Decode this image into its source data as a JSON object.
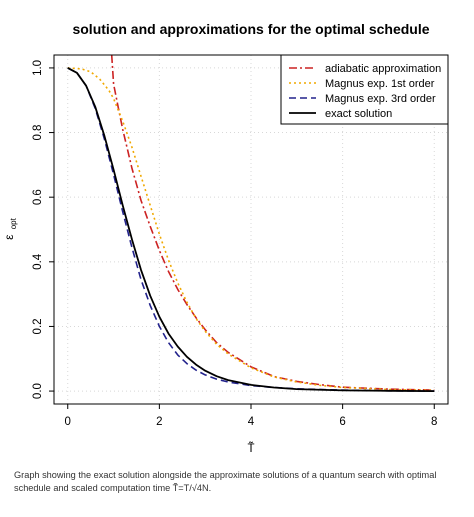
{
  "chart_data": {
    "type": "line",
    "title": "solution and approximations for the optimal schedule",
    "xlabel": "T̃",
    "ylabel": "ε",
    "ylabel_sub": "opt",
    "xlim": [
      -0.3,
      8.3
    ],
    "ylim": [
      -0.04,
      1.04
    ],
    "x_ticks": [
      "0",
      "2",
      "4",
      "6",
      "8"
    ],
    "y_ticks": [
      "0.0",
      "0.2",
      "0.4",
      "0.6",
      "0.8",
      "1.0"
    ],
    "grid": true,
    "legend_position": "top-right",
    "series": [
      {
        "name": "adiabatic approximation",
        "color": "#cc2222",
        "dash": "dot-dash",
        "x": [
          0.96,
          1.0,
          1.1,
          1.2,
          1.3,
          1.4,
          1.5,
          1.6,
          1.8,
          2.0,
          2.2,
          2.4,
          2.6,
          2.8,
          3.0,
          3.25,
          3.5,
          4.0,
          4.5,
          5.0,
          5.5,
          6.0,
          7.0,
          8.0
        ],
        "values": [
          1.04,
          0.95,
          0.88,
          0.81,
          0.75,
          0.69,
          0.64,
          0.59,
          0.51,
          0.435,
          0.37,
          0.315,
          0.268,
          0.227,
          0.19,
          0.15,
          0.12,
          0.075,
          0.045,
          0.03,
          0.02,
          0.012,
          0.006,
          0.003
        ]
      },
      {
        "name": "Magnus exp. 1st order",
        "color": "#f0a800",
        "dash": "dotted",
        "x": [
          0.0,
          0.3,
          0.5,
          0.7,
          0.9,
          1.0,
          1.2,
          1.4,
          1.6,
          1.8,
          2.0,
          2.2,
          2.4,
          2.6,
          2.8,
          3.0,
          3.25,
          3.5,
          4.0,
          4.5,
          5.0,
          5.5,
          6.0,
          7.0,
          8.0
        ],
        "values": [
          1.0,
          0.997,
          0.988,
          0.965,
          0.93,
          0.905,
          0.835,
          0.755,
          0.665,
          0.575,
          0.485,
          0.405,
          0.335,
          0.275,
          0.225,
          0.185,
          0.145,
          0.115,
          0.072,
          0.044,
          0.028,
          0.018,
          0.011,
          0.005,
          0.002
        ]
      },
      {
        "name": "Magnus exp. 3rd order",
        "color": "#22228c",
        "dash": "dashed",
        "x": [
          0.0,
          0.2,
          0.4,
          0.6,
          0.8,
          1.0,
          1.2,
          1.4,
          1.6,
          1.8,
          2.0,
          2.2,
          2.4,
          2.6,
          2.8,
          3.0,
          3.25,
          3.5,
          4.0,
          4.5,
          5.0,
          6.0,
          7.0,
          8.0
        ],
        "values": [
          1.0,
          0.985,
          0.945,
          0.875,
          0.78,
          0.67,
          0.555,
          0.445,
          0.345,
          0.265,
          0.2,
          0.15,
          0.112,
          0.085,
          0.065,
          0.05,
          0.037,
          0.028,
          0.017,
          0.011,
          0.007,
          0.003,
          0.001,
          0.0
        ]
      },
      {
        "name": "exact solution",
        "color": "#000000",
        "dash": "solid",
        "x": [
          0.0,
          0.2,
          0.4,
          0.6,
          0.8,
          1.0,
          1.2,
          1.4,
          1.6,
          1.8,
          2.0,
          2.2,
          2.4,
          2.6,
          2.8,
          3.0,
          3.25,
          3.5,
          4.0,
          4.5,
          5.0,
          6.0,
          7.0,
          8.0
        ],
        "values": [
          1.0,
          0.985,
          0.945,
          0.88,
          0.79,
          0.685,
          0.575,
          0.47,
          0.375,
          0.295,
          0.23,
          0.178,
          0.138,
          0.106,
          0.082,
          0.063,
          0.046,
          0.034,
          0.019,
          0.011,
          0.006,
          0.002,
          0.001,
          0.0
        ]
      }
    ]
  },
  "caption": "Graph showing the exact solution alongside the approximate solutions of a quantum search with optimal schedule and scaled computation time T̃=T/√4N."
}
